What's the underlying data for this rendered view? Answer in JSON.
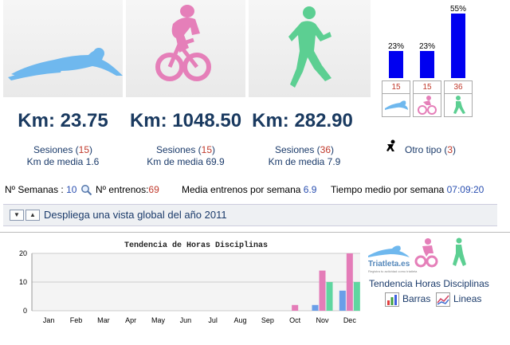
{
  "sports": [
    {
      "name": "natacion",
      "km": "Km: 23.75",
      "sesiones_label": "Sesiones (",
      "sesiones_count": "15",
      "sesiones_close": ")",
      "media": "Km de media 1.6"
    },
    {
      "name": "ciclismo",
      "km": "Km: 1048.50",
      "sesiones_label": "Sesiones (",
      "sesiones_count": "15",
      "sesiones_close": ")",
      "media": "Km de media 69.9"
    },
    {
      "name": "carrera",
      "km": "Km: 282.90",
      "sesiones_label": "Sesiones (",
      "sesiones_count": "36",
      "sesiones_close": ")",
      "media": "Km de media 7.9"
    }
  ],
  "mini_chart": {
    "percents": [
      "23%",
      "23%",
      "55%"
    ],
    "fractions": [
      0.23,
      0.23,
      0.55
    ],
    "counts": [
      "15",
      "15",
      "36"
    ],
    "bar_color": "#0000f0"
  },
  "otro_tipo": {
    "label": "Otro tipo (",
    "count": "3",
    "close": ")"
  },
  "summary": {
    "semanas_label": "Nº Semanas : ",
    "semanas_value": "10",
    "entrenos_label": "Nº entrenos:",
    "entrenos_value": "69",
    "media_label": "Media entrenos por semana ",
    "media_value": "6.9",
    "tiempo_label": "Tiempo medio por semana ",
    "tiempo_value": "07:09:20"
  },
  "toggle": {
    "label": "Despliega una vista global del año 2011"
  },
  "chart_data": {
    "type": "bar",
    "title": "Tendencia de Horas Disciplinas",
    "categories": [
      "Jan",
      "Feb",
      "Mar",
      "Apr",
      "May",
      "Jun",
      "Jul",
      "Aug",
      "Sep",
      "Oct",
      "Nov",
      "Dec"
    ],
    "x_tick_labels": [
      "Jan",
      "Feb",
      "Mar",
      "Apr",
      "May",
      "Jun",
      "Jul",
      "Aug",
      "Sep",
      "Oct",
      "Nov",
      "Dec"
    ],
    "y_ticks": [
      "0",
      "10",
      "20"
    ],
    "ylim": [
      0,
      20
    ],
    "grid": true,
    "series": [
      {
        "values": [
          0,
          0,
          0,
          0,
          0,
          0,
          0,
          0,
          0,
          0,
          2,
          7
        ],
        "color": "#6a9ee8"
      },
      {
        "values": [
          0,
          0,
          0,
          0,
          0,
          0,
          0,
          0,
          0,
          2,
          14,
          20
        ],
        "color": "#e47cb8"
      },
      {
        "values": [
          0,
          0,
          0,
          0,
          0,
          0,
          0,
          0,
          0,
          0,
          10,
          10
        ],
        "color": "#5fd6a0"
      }
    ]
  },
  "legend": {
    "brand": "Triatleta.es",
    "brand_sub": "Registra tu actividad como triatleta",
    "title": "Tendencia Horas Disciplinas",
    "barras": "Barras",
    "lineas": "Lineas"
  },
  "colors": {
    "swim": "#6fb8ee",
    "bike": "#e57fb9",
    "run": "#5ccf92"
  }
}
